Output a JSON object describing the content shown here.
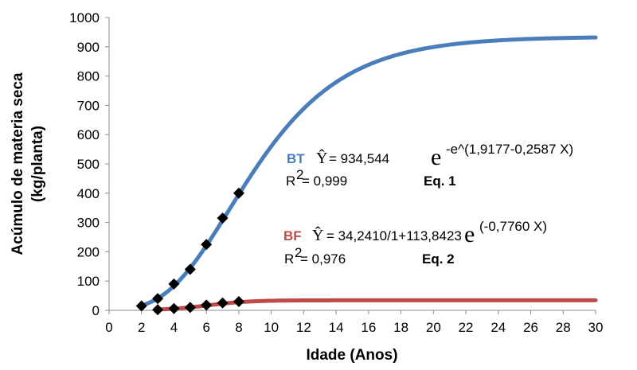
{
  "chart_data": {
    "type": "line",
    "xlabel": "Idade  (Anos)",
    "ylabel_line1": "Acúmulo  de materia  seca",
    "ylabel_line2": "(kg/planta)",
    "xlim": [
      0,
      30
    ],
    "ylim": [
      0,
      1000
    ],
    "x_ticks": [
      "0",
      "2",
      "4",
      "6",
      "8",
      "10",
      "12",
      "14",
      "16",
      "18",
      "20",
      "22",
      "24",
      "26",
      "28",
      "30"
    ],
    "y_ticks": [
      "0",
      "100",
      "200",
      "300",
      "400",
      "500",
      "600",
      "700",
      "800",
      "900",
      "1000"
    ],
    "grid": false,
    "series": [
      {
        "name": "BT",
        "color": "#4a7ebb",
        "model": "gompertz",
        "params": {
          "a": 934.544,
          "b": 1.9177,
          "c": 0.2587
        },
        "x_range": [
          2,
          30
        ],
        "observed": {
          "x": [
            2,
            3,
            4,
            5,
            6,
            7,
            8
          ],
          "y": [
            15,
            40,
            90,
            140,
            225,
            315,
            400
          ]
        }
      },
      {
        "name": "BF",
        "color": "#be4b48",
        "model": "logistic",
        "params": {
          "a": 34.241,
          "b": 113.8423,
          "c": 0.776
        },
        "x_range": [
          3,
          30
        ],
        "observed": {
          "x": [
            3,
            4,
            5,
            6,
            7,
            8
          ],
          "y": [
            2,
            6,
            10,
            18,
            25,
            30
          ]
        }
      }
    ],
    "annotations": {
      "eq1": {
        "series": "BT",
        "yhat": "Ŷ",
        "eq_prefix": "= 934,544",
        "e": "e",
        "exponent": "-e^(1,9177-0,2587 X)",
        "r2_label": "R",
        "r2_sup": "2",
        "r2_value": "= 0,999",
        "eq_label": "Eq. 1"
      },
      "eq2": {
        "series": "BF",
        "yhat": "Ŷ",
        "eq_prefix": "= 34,2410/1+113,8423",
        "e": "e",
        "exponent": "(-0,7760 X)",
        "r2_label": "R",
        "r2_sup": "2",
        "r2_value": "= 0,976",
        "eq_label": "Eq. 2"
      }
    }
  }
}
